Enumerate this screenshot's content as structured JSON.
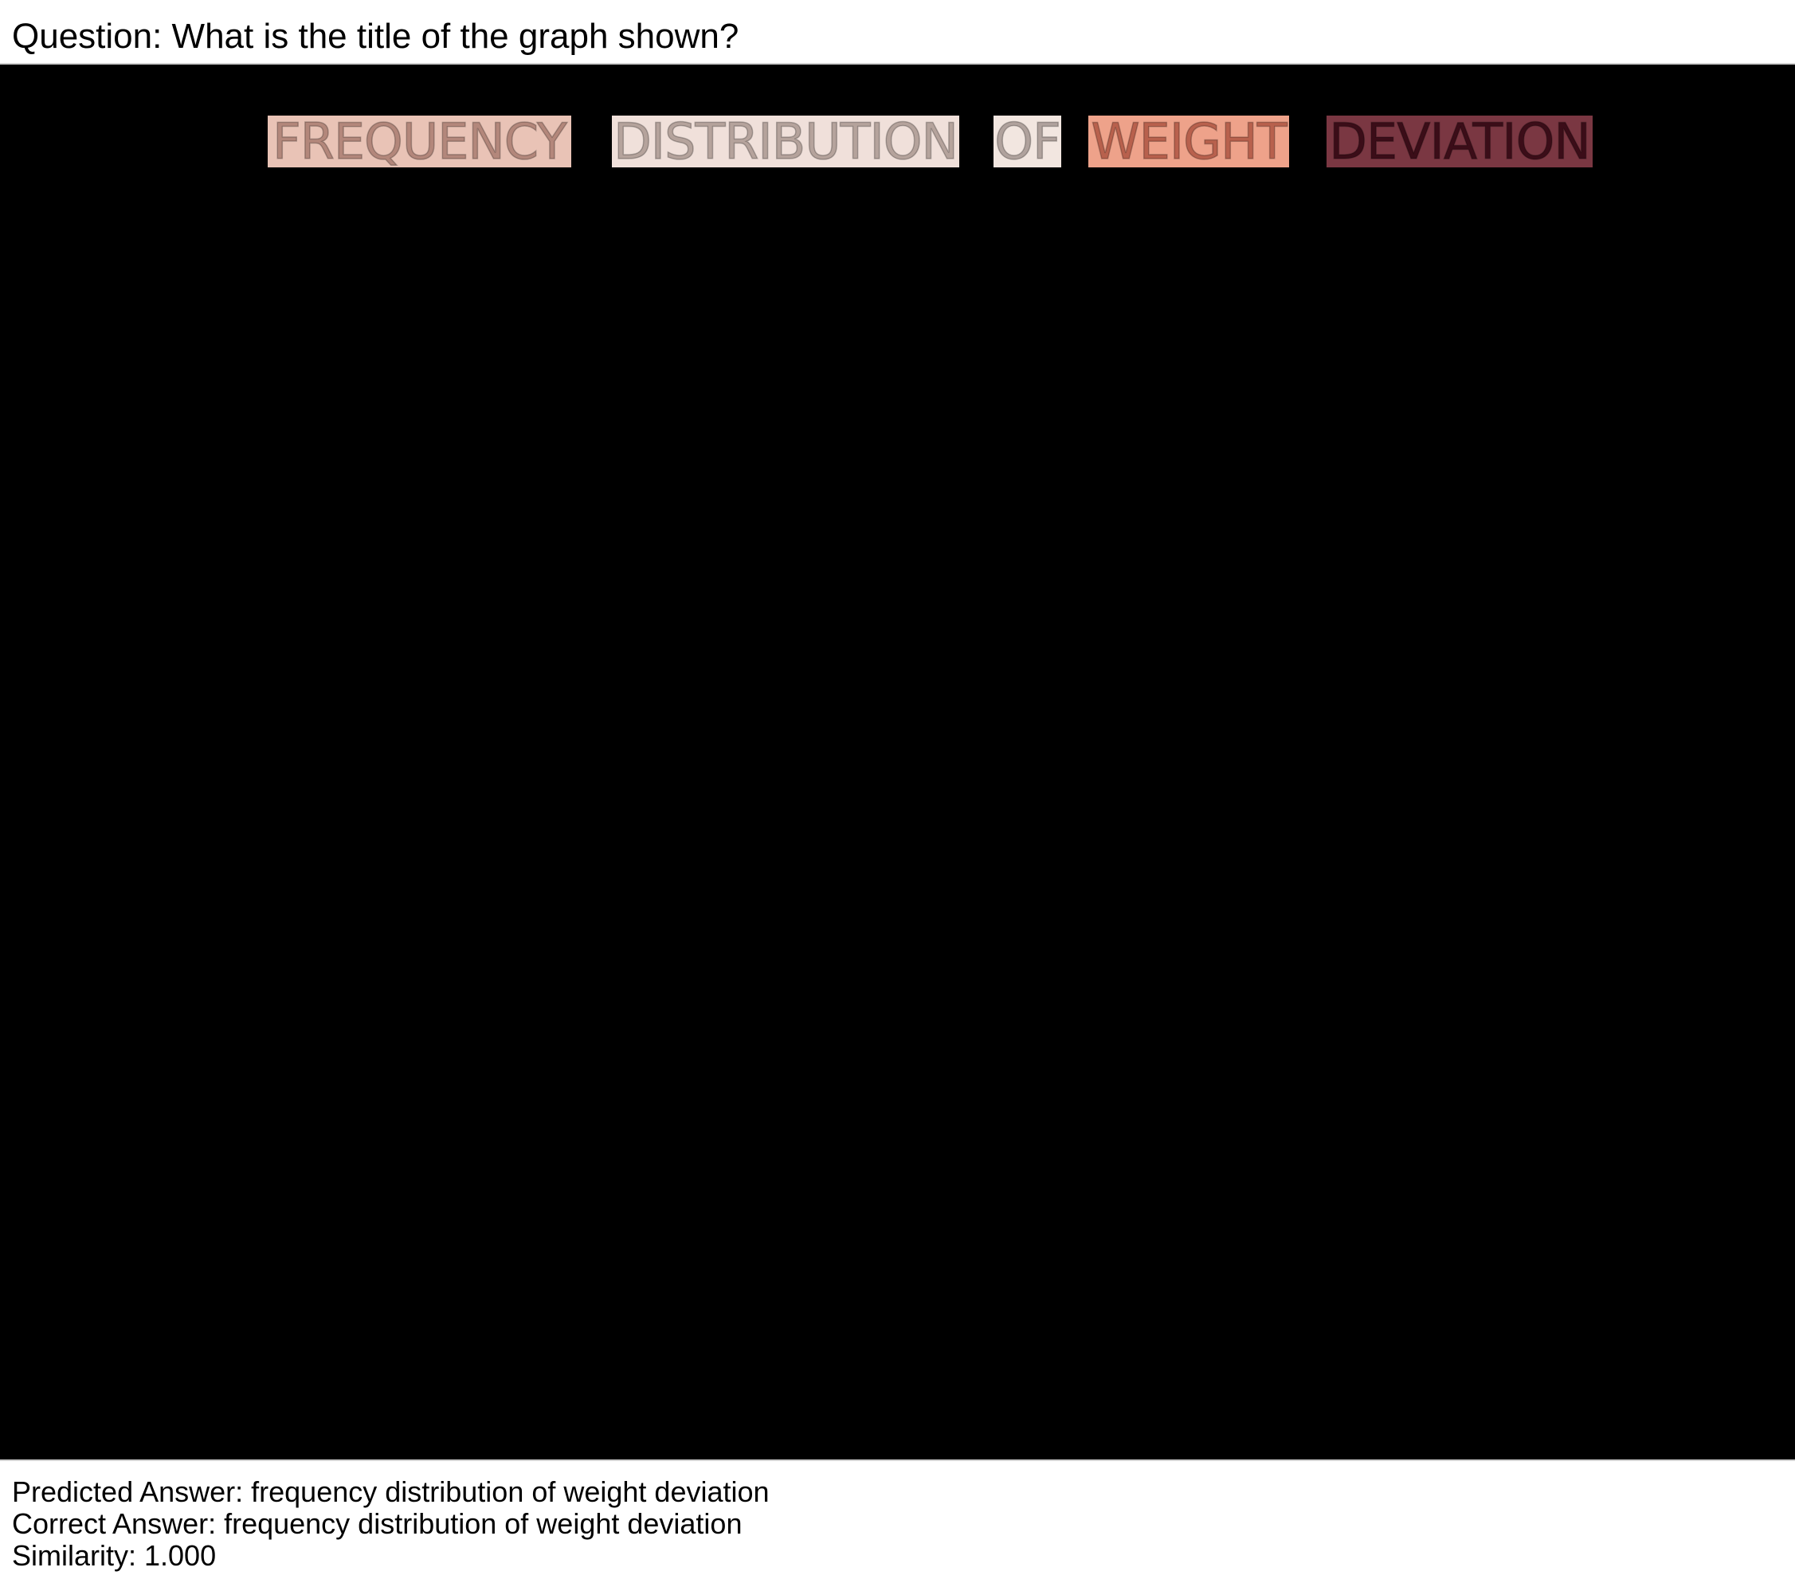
{
  "question": "Question: What is the title of the graph shown?",
  "title_words": [
    {
      "text": "FREQUENCY",
      "bg": "#e9c3b6",
      "fg": "#b3877b"
    },
    {
      "text": "DISTRIBUTION",
      "bg": "#f0e0da",
      "fg": "#b5a39c"
    },
    {
      "text": "OF",
      "bg": "#f2e6e0",
      "fg": "#b0a29d"
    },
    {
      "text": "WEIGHT",
      "bg": "#eea28a",
      "fg": "#b8614d"
    },
    {
      "text": "DEVIATION",
      "bg": "#7a3742",
      "fg": "#3b0d18"
    }
  ],
  "results": {
    "predicted": "Predicted Answer: frequency distribution of weight deviation",
    "correct": "Correct Answer: frequency distribution of weight deviation",
    "similarity": "Similarity: 1.000"
  }
}
